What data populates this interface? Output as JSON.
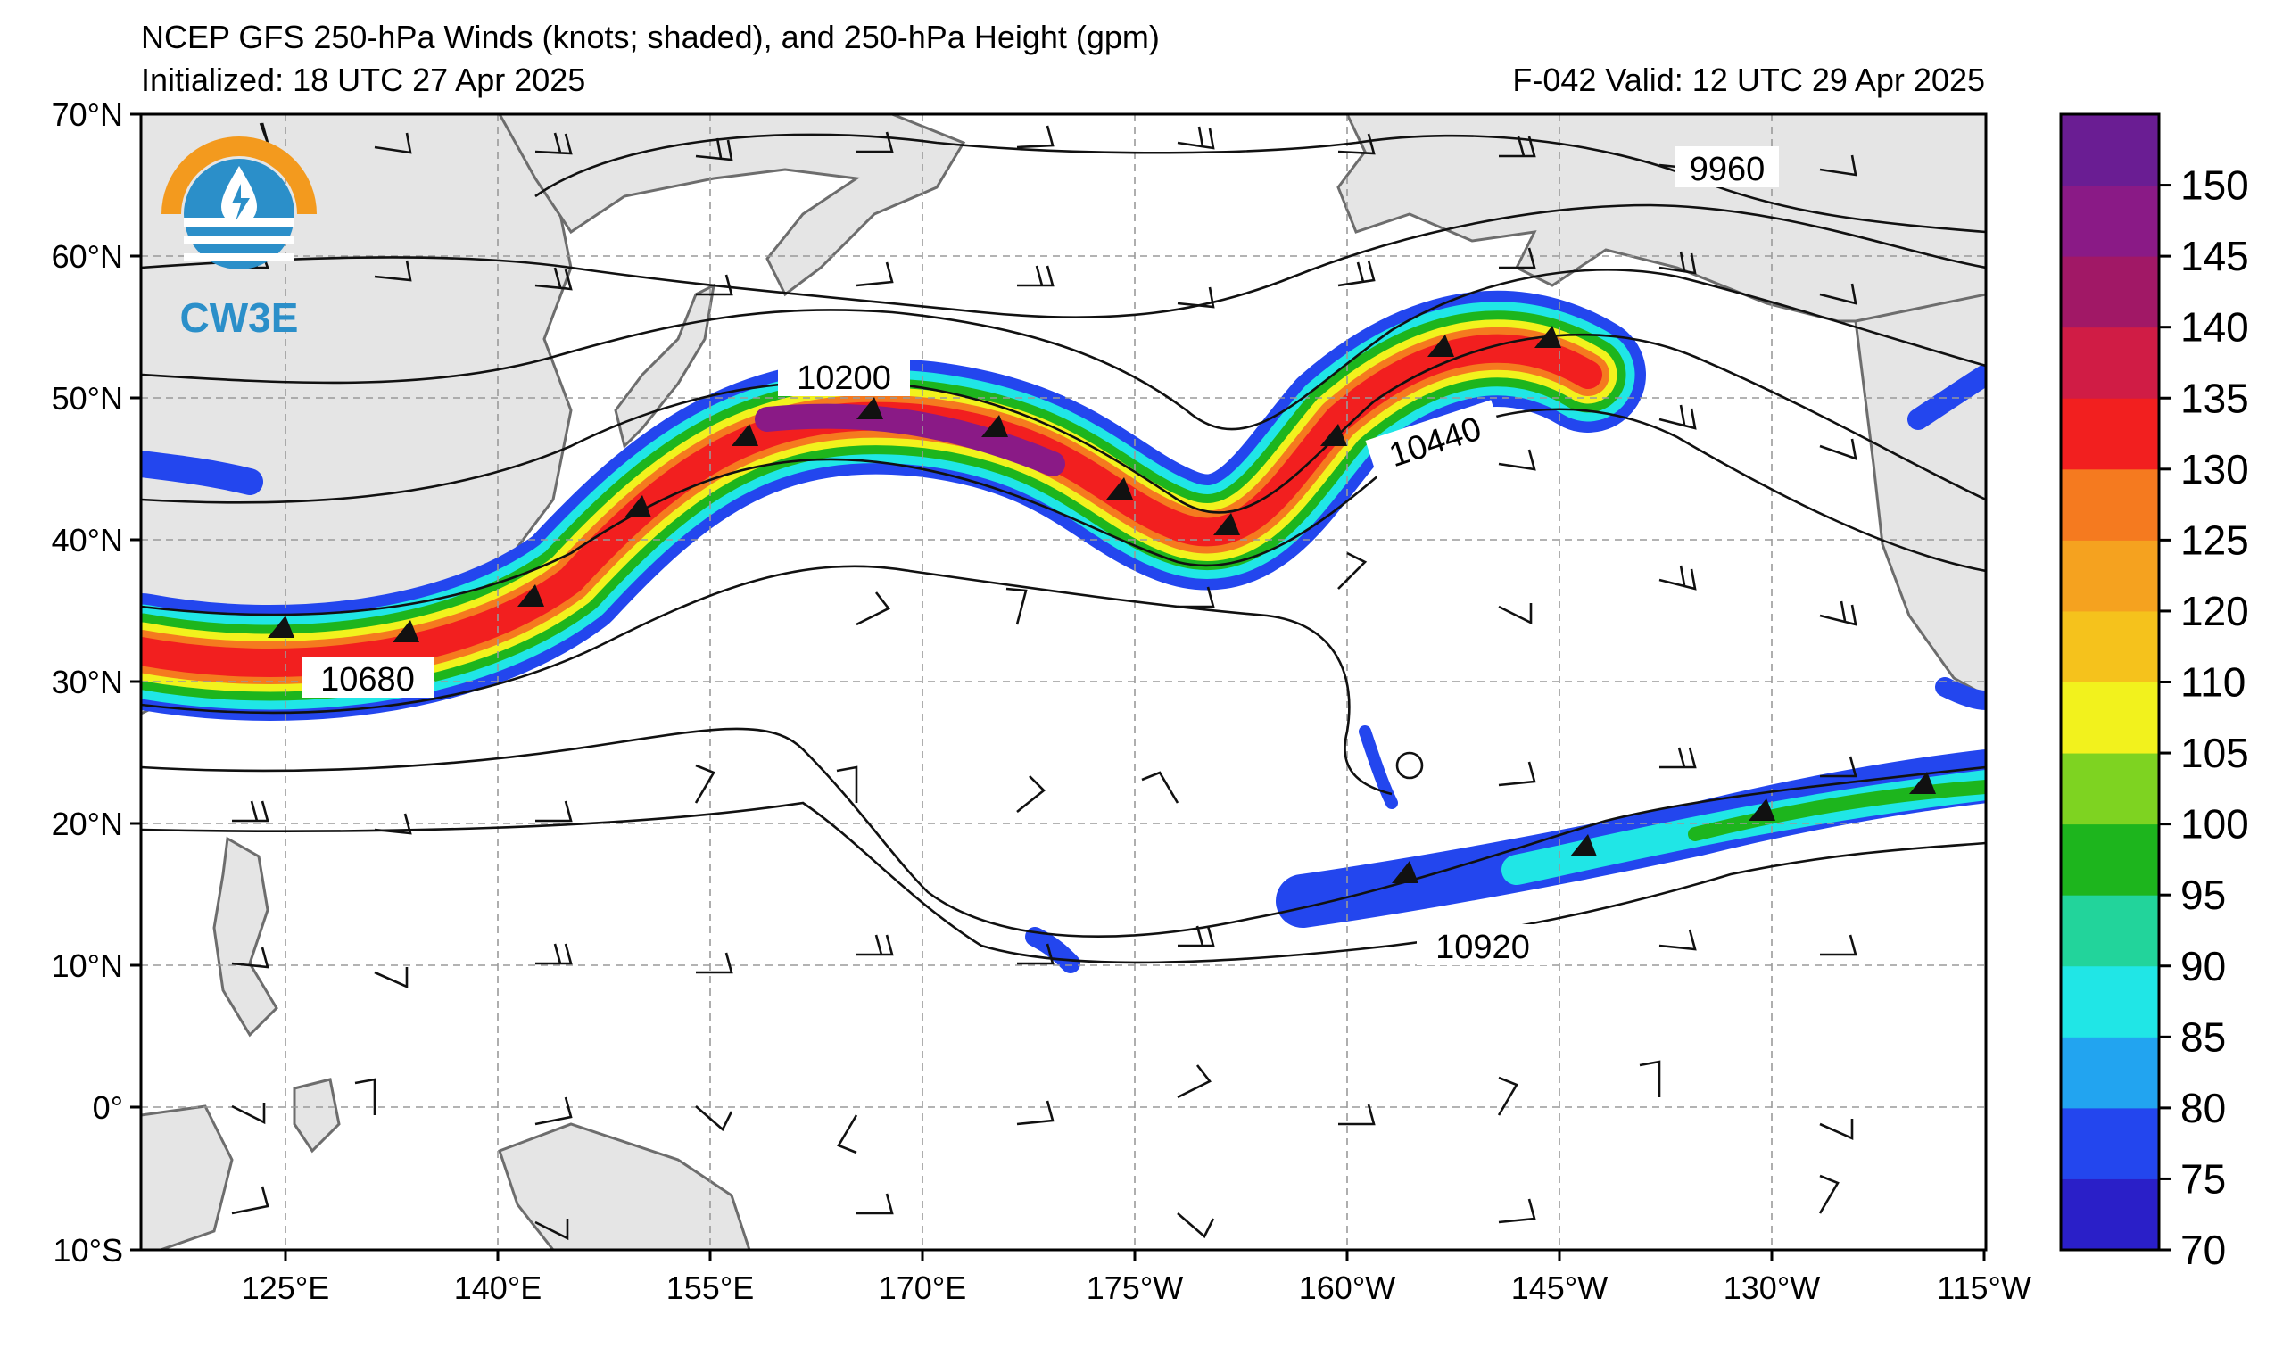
{
  "header": {
    "title_line1": "NCEP GFS 250-hPa Winds (knots; shaded), and 250-hPa Height (gpm)",
    "title_line2": "Initialized: 18 UTC 27 Apr 2025",
    "valid": "F-042  Valid: 12 UTC 29 Apr 2025"
  },
  "logo": {
    "text": "CW3E",
    "colors": {
      "orange": "#f39a1e",
      "blue": "#2b8fc9",
      "dark": "#1b5f8a"
    }
  },
  "map": {
    "lat_labels": [
      "70°N",
      "60°N",
      "50°N",
      "40°N",
      "30°N",
      "20°N",
      "10°N",
      "0°",
      "10°S"
    ],
    "lon_labels": [
      "125°E",
      "140°E",
      "155°E",
      "170°E",
      "175°W",
      "160°W",
      "145°W",
      "130°W",
      "115°W"
    ],
    "contour_labels": [
      "9960",
      "10200",
      "10440",
      "10680",
      "10920"
    ]
  },
  "colorbar": {
    "labels": [
      "150",
      "145",
      "140",
      "135",
      "130",
      "125",
      "120",
      "110",
      "105",
      "100",
      "95",
      "90",
      "85",
      "80",
      "75",
      "70"
    ],
    "colors": [
      "#2a1fc8",
      "#2346ee",
      "#22a4f0",
      "#20e6e6",
      "#22d49b",
      "#1db51d",
      "#7ed321",
      "#f2f21d",
      "#f5c21c",
      "#f5a21f",
      "#f57a1f",
      "#f21f1f",
      "#d01c45",
      "#a11866",
      "#8a1a86",
      "#6a1d93"
    ]
  }
}
